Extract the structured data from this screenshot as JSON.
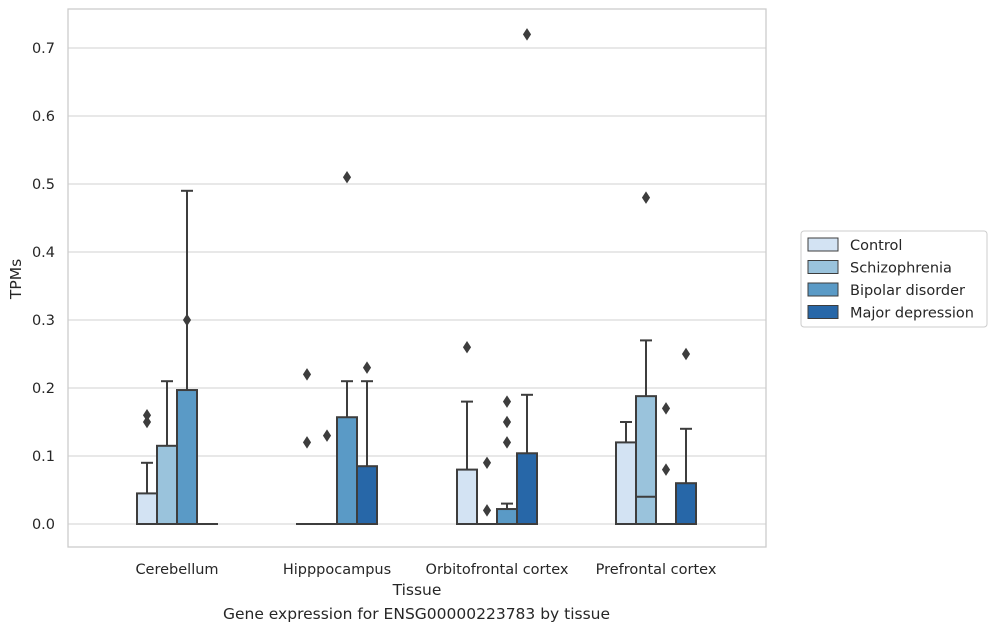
{
  "caption": "Gene expression for ENSG00000223783 by tissue",
  "chart_data": {
    "type": "box",
    "xlabel": "Tissue",
    "ylabel": "TPMs",
    "ylim": [
      -0.035,
      0.76
    ],
    "yticks": [
      0.0,
      0.1,
      0.2,
      0.3,
      0.4,
      0.5,
      0.6,
      0.7
    ],
    "ytick_labels": [
      "0.0",
      "0.1",
      "0.2",
      "0.3",
      "0.4",
      "0.5",
      "0.6",
      "0.7"
    ],
    "grid": "horizontal",
    "legend_position": "right",
    "categories": [
      "Cerebellum",
      "Hipppocampus",
      "Orbitofrontal cortex",
      "Prefrontal cortex"
    ],
    "series": [
      {
        "name": "Control",
        "color": "#d3e3f3",
        "boxes": [
          {
            "q1": 0.0,
            "median": 0.0,
            "q3": 0.045,
            "whisker_low": 0.0,
            "whisker_high": 0.09,
            "outliers": [
              0.15,
              0.16
            ]
          },
          {
            "q1": 0.0,
            "median": 0.0,
            "q3": 0.0,
            "whisker_low": 0.0,
            "whisker_high": 0.0,
            "outliers": [
              0.12,
              0.22
            ]
          },
          {
            "q1": 0.0,
            "median": 0.0,
            "q3": 0.08,
            "whisker_low": 0.0,
            "whisker_high": 0.18,
            "outliers": [
              0.26
            ]
          },
          {
            "q1": 0.0,
            "median": 0.0,
            "q3": 0.12,
            "whisker_low": 0.0,
            "whisker_high": 0.15,
            "outliers": []
          }
        ]
      },
      {
        "name": "Schizophrenia",
        "color": "#9ac3dc",
        "boxes": [
          {
            "q1": 0.0,
            "median": 0.0,
            "q3": 0.115,
            "whisker_low": 0.0,
            "whisker_high": 0.21,
            "outliers": []
          },
          {
            "q1": 0.0,
            "median": 0.0,
            "q3": 0.0,
            "whisker_low": 0.0,
            "whisker_high": 0.0,
            "outliers": [
              0.13
            ]
          },
          {
            "q1": 0.0,
            "median": 0.0,
            "q3": 0.0,
            "whisker_low": 0.0,
            "whisker_high": 0.0,
            "outliers": [
              0.02,
              0.09
            ]
          },
          {
            "q1": 0.0,
            "median": 0.04,
            "q3": 0.188,
            "whisker_low": 0.0,
            "whisker_high": 0.27,
            "outliers": [
              0.48
            ]
          }
        ]
      },
      {
        "name": "Bipolar disorder",
        "color": "#5a9ac6",
        "boxes": [
          {
            "q1": 0.0,
            "median": 0.0,
            "q3": 0.197,
            "whisker_low": 0.0,
            "whisker_high": 0.49,
            "outliers": [
              0.3
            ]
          },
          {
            "q1": 0.0,
            "median": 0.0,
            "q3": 0.157,
            "whisker_low": 0.0,
            "whisker_high": 0.21,
            "outliers": [
              0.51
            ]
          },
          {
            "q1": 0.0,
            "median": 0.0,
            "q3": 0.022,
            "whisker_low": 0.0,
            "whisker_high": 0.03,
            "outliers": [
              0.12,
              0.15,
              0.18
            ]
          },
          {
            "q1": 0.0,
            "median": 0.0,
            "q3": 0.0,
            "whisker_low": 0.0,
            "whisker_high": 0.0,
            "outliers": [
              0.08,
              0.17
            ]
          }
        ]
      },
      {
        "name": "Major depression",
        "color": "#2767a8",
        "boxes": [
          {
            "q1": 0.0,
            "median": 0.0,
            "q3": 0.0,
            "whisker_low": 0.0,
            "whisker_high": 0.0,
            "outliers": []
          },
          {
            "q1": 0.0,
            "median": 0.0,
            "q3": 0.085,
            "whisker_low": 0.0,
            "whisker_high": 0.21,
            "outliers": [
              0.23
            ]
          },
          {
            "q1": 0.0,
            "median": 0.0,
            "q3": 0.104,
            "whisker_low": 0.0,
            "whisker_high": 0.19,
            "outliers": [
              0.72
            ]
          },
          {
            "q1": 0.0,
            "median": 0.0,
            "q3": 0.06,
            "whisker_low": 0.0,
            "whisker_high": 0.14,
            "outliers": [
              0.25
            ]
          }
        ]
      }
    ]
  }
}
